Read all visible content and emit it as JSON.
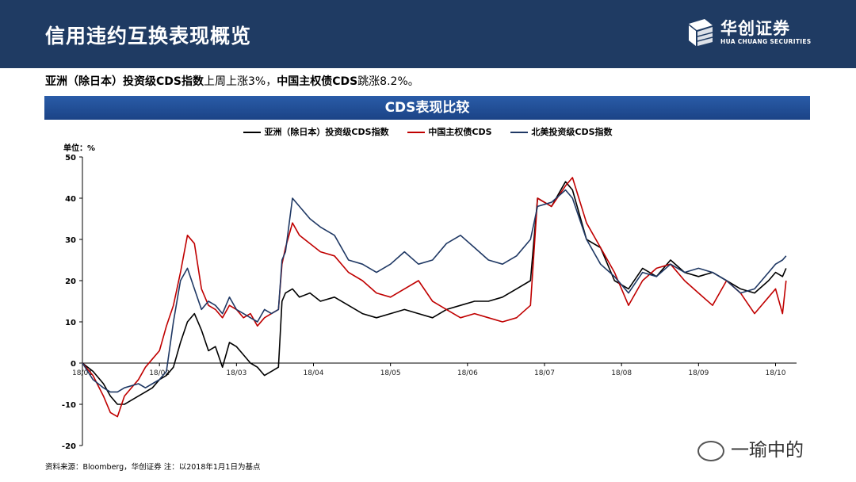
{
  "header": {
    "title": "信用违约互换表现概览",
    "brand_cn": "华创证券",
    "brand_en": "HUA CHUANG SECURITIES"
  },
  "subtitle": {
    "part1_bold": "亚洲（除日本）投资级CDS指数",
    "part2": "上周上涨3%，",
    "part3_bold": "中国主权债CDS",
    "part4": "跳涨8.2%。"
  },
  "banner": {
    "title": "CDS表现比较"
  },
  "source_note": "资料来源：Bloomberg，华创证券   注：以2018年1月1日为基点",
  "watermark": "一瑜中的",
  "chart_data": {
    "type": "line",
    "unit_label": "单位：%",
    "ylim": [
      -20,
      50
    ],
    "yticks": [
      "50",
      "40",
      "30",
      "20",
      "10",
      "0",
      "-10",
      "-20"
    ],
    "x_tick_labels": [
      "18/01",
      "18/02",
      "18/03",
      "18/04",
      "18/05",
      "18/06",
      "18/07",
      "18/08",
      "18/09",
      "18/10"
    ],
    "x_tick_index": [
      0,
      22,
      44,
      66,
      88,
      110,
      132,
      154,
      176,
      198
    ],
    "x_total": 204,
    "legend_placement": "top",
    "grid": false,
    "colors": {
      "asia": "#000000",
      "china": "#c00000",
      "na": "#1f3864"
    },
    "series": [
      {
        "name": "亚洲（除日本）投资级CDS指数",
        "color": "#000000",
        "points": [
          [
            0,
            0
          ],
          [
            3,
            -2
          ],
          [
            6,
            -5
          ],
          [
            8,
            -8
          ],
          [
            10,
            -10
          ],
          [
            12,
            -10
          ],
          [
            16,
            -8
          ],
          [
            18,
            -7
          ],
          [
            20,
            -6
          ],
          [
            22,
            -4
          ],
          [
            24,
            -3
          ],
          [
            26,
            -1
          ],
          [
            28,
            5
          ],
          [
            30,
            10
          ],
          [
            32,
            12
          ],
          [
            34,
            8
          ],
          [
            36,
            3
          ],
          [
            38,
            4
          ],
          [
            40,
            -1
          ],
          [
            42,
            5
          ],
          [
            44,
            4
          ],
          [
            46,
            2
          ],
          [
            48,
            0
          ],
          [
            50,
            -1
          ],
          [
            52,
            -3
          ],
          [
            54,
            -2
          ],
          [
            56,
            -1
          ],
          [
            57,
            15
          ],
          [
            58,
            17
          ],
          [
            60,
            18
          ],
          [
            62,
            16
          ],
          [
            65,
            17
          ],
          [
            68,
            15
          ],
          [
            72,
            16
          ],
          [
            76,
            14
          ],
          [
            80,
            12
          ],
          [
            84,
            11
          ],
          [
            88,
            12
          ],
          [
            92,
            13
          ],
          [
            96,
            12
          ],
          [
            100,
            11
          ],
          [
            104,
            13
          ],
          [
            108,
            14
          ],
          [
            112,
            15
          ],
          [
            116,
            15
          ],
          [
            120,
            16
          ],
          [
            124,
            18
          ],
          [
            128,
            20
          ],
          [
            130,
            40
          ],
          [
            134,
            38
          ],
          [
            138,
            44
          ],
          [
            140,
            42
          ],
          [
            144,
            30
          ],
          [
            148,
            28
          ],
          [
            152,
            20
          ],
          [
            156,
            18
          ],
          [
            160,
            23
          ],
          [
            164,
            21
          ],
          [
            168,
            25
          ],
          [
            172,
            22
          ],
          [
            176,
            21
          ],
          [
            180,
            22
          ],
          [
            184,
            20
          ],
          [
            188,
            18
          ],
          [
            192,
            17
          ],
          [
            196,
            20
          ],
          [
            198,
            22
          ],
          [
            200,
            21
          ],
          [
            201,
            23
          ]
        ]
      },
      {
        "name": "中国主权债CDS",
        "color": "#c00000",
        "points": [
          [
            0,
            0
          ],
          [
            3,
            -3
          ],
          [
            6,
            -8
          ],
          [
            8,
            -12
          ],
          [
            10,
            -13
          ],
          [
            12,
            -8
          ],
          [
            16,
            -4
          ],
          [
            18,
            -1
          ],
          [
            20,
            1
          ],
          [
            22,
            3
          ],
          [
            24,
            9
          ],
          [
            26,
            14
          ],
          [
            28,
            22
          ],
          [
            30,
            31
          ],
          [
            32,
            29
          ],
          [
            34,
            18
          ],
          [
            36,
            14
          ],
          [
            38,
            13
          ],
          [
            40,
            11
          ],
          [
            42,
            14
          ],
          [
            44,
            13
          ],
          [
            46,
            11
          ],
          [
            48,
            12
          ],
          [
            50,
            9
          ],
          [
            52,
            11
          ],
          [
            54,
            12
          ],
          [
            56,
            13
          ],
          [
            57,
            24
          ],
          [
            58,
            28
          ],
          [
            60,
            34
          ],
          [
            62,
            31
          ],
          [
            65,
            29
          ],
          [
            68,
            27
          ],
          [
            72,
            26
          ],
          [
            76,
            22
          ],
          [
            80,
            20
          ],
          [
            84,
            17
          ],
          [
            88,
            16
          ],
          [
            92,
            18
          ],
          [
            96,
            20
          ],
          [
            100,
            15
          ],
          [
            104,
            13
          ],
          [
            108,
            11
          ],
          [
            112,
            12
          ],
          [
            116,
            11
          ],
          [
            120,
            10
          ],
          [
            124,
            11
          ],
          [
            128,
            14
          ],
          [
            130,
            40
          ],
          [
            134,
            38
          ],
          [
            138,
            43
          ],
          [
            140,
            45
          ],
          [
            144,
            34
          ],
          [
            148,
            28
          ],
          [
            152,
            22
          ],
          [
            156,
            14
          ],
          [
            160,
            20
          ],
          [
            164,
            23
          ],
          [
            168,
            24
          ],
          [
            172,
            20
          ],
          [
            176,
            17
          ],
          [
            180,
            14
          ],
          [
            184,
            20
          ],
          [
            188,
            17
          ],
          [
            192,
            12
          ],
          [
            196,
            16
          ],
          [
            198,
            18
          ],
          [
            200,
            12
          ],
          [
            201,
            20
          ]
        ]
      },
      {
        "name": "北美投资级CDS指数",
        "color": "#1f3864",
        "points": [
          [
            0,
            0
          ],
          [
            3,
            -4
          ],
          [
            6,
            -6
          ],
          [
            8,
            -7
          ],
          [
            10,
            -7
          ],
          [
            12,
            -6
          ],
          [
            16,
            -5
          ],
          [
            18,
            -6
          ],
          [
            20,
            -5
          ],
          [
            22,
            -4
          ],
          [
            24,
            -2
          ],
          [
            26,
            10
          ],
          [
            28,
            20
          ],
          [
            30,
            23
          ],
          [
            32,
            18
          ],
          [
            34,
            13
          ],
          [
            36,
            15
          ],
          [
            38,
            14
          ],
          [
            40,
            12
          ],
          [
            42,
            16
          ],
          [
            44,
            13
          ],
          [
            46,
            12
          ],
          [
            48,
            11
          ],
          [
            50,
            10
          ],
          [
            52,
            13
          ],
          [
            54,
            12
          ],
          [
            56,
            13
          ],
          [
            57,
            25
          ],
          [
            58,
            27
          ],
          [
            60,
            40
          ],
          [
            62,
            38
          ],
          [
            65,
            35
          ],
          [
            68,
            33
          ],
          [
            72,
            31
          ],
          [
            76,
            25
          ],
          [
            80,
            24
          ],
          [
            84,
            22
          ],
          [
            88,
            24
          ],
          [
            92,
            27
          ],
          [
            96,
            24
          ],
          [
            100,
            25
          ],
          [
            104,
            29
          ],
          [
            108,
            31
          ],
          [
            112,
            28
          ],
          [
            116,
            25
          ],
          [
            120,
            24
          ],
          [
            124,
            26
          ],
          [
            128,
            30
          ],
          [
            130,
            38
          ],
          [
            134,
            39
          ],
          [
            138,
            42
          ],
          [
            140,
            40
          ],
          [
            144,
            30
          ],
          [
            148,
            24
          ],
          [
            152,
            21
          ],
          [
            156,
            17
          ],
          [
            160,
            22
          ],
          [
            164,
            21
          ],
          [
            168,
            24
          ],
          [
            172,
            22
          ],
          [
            176,
            23
          ],
          [
            180,
            22
          ],
          [
            184,
            20
          ],
          [
            188,
            17
          ],
          [
            192,
            18
          ],
          [
            196,
            22
          ],
          [
            198,
            24
          ],
          [
            200,
            25
          ],
          [
            201,
            26
          ]
        ]
      }
    ]
  }
}
